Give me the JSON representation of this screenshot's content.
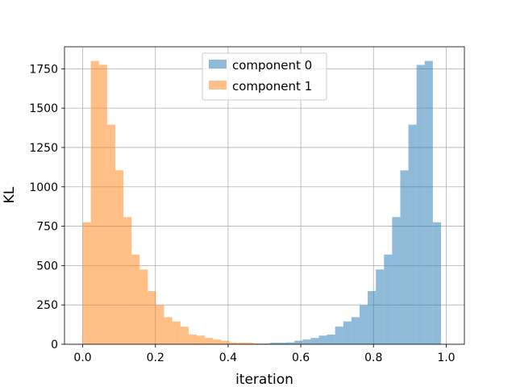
{
  "chart_data": {
    "type": "bar",
    "title": "",
    "xlabel": "iteration",
    "ylabel": "KL",
    "xlim": [
      -0.05,
      1.05
    ],
    "ylim": [
      0,
      1890
    ],
    "xticks": [
      0.0,
      0.2,
      0.4,
      0.6,
      0.8,
      1.0
    ],
    "xtick_labels": [
      "0.0",
      "0.2",
      "0.4",
      "0.6",
      "0.8",
      "1.0"
    ],
    "yticks": [
      0,
      250,
      500,
      750,
      1000,
      1250,
      1500,
      1750
    ],
    "ytick_labels": [
      "0",
      "250",
      "500",
      "750",
      "1000",
      "1250",
      "1500",
      "1750"
    ],
    "grid": true,
    "legend_position": "top-center",
    "bin_edges": [
      0.0,
      0.0224,
      0.0448,
      0.0672,
      0.0896,
      0.112,
      0.1344,
      0.1568,
      0.1792,
      0.2016,
      0.224,
      0.2464,
      0.2688,
      0.2912,
      0.3136,
      0.336,
      0.3584,
      0.3808,
      0.4032,
      0.4256,
      0.448,
      0.4704,
      0.4928,
      0.5152,
      0.5376,
      0.56,
      0.5824,
      0.6048,
      0.6272,
      0.6496,
      0.672,
      0.6944,
      0.7168,
      0.7392,
      0.7616,
      0.784,
      0.8064,
      0.8288,
      0.8512,
      0.8736,
      0.896,
      0.9184,
      0.9408,
      0.9632,
      0.9856
    ],
    "series": [
      {
        "name": "component 0",
        "color": "#1f77b4",
        "alpha": 0.5,
        "values": [
          0,
          0,
          0,
          0,
          0,
          0,
          0,
          0,
          0,
          0,
          0,
          0,
          0,
          0,
          0,
          0,
          0,
          0,
          0,
          0,
          0,
          3,
          5,
          10,
          10,
          12,
          22,
          30,
          40,
          55,
          62,
          112,
          145,
          172,
          248,
          338,
          475,
          570,
          808,
          1105,
          1395,
          1775,
          1800,
          775
        ]
      },
      {
        "name": "component 1",
        "color": "#ff7f0e",
        "alpha": 0.5,
        "values": [
          775,
          1800,
          1775,
          1395,
          1105,
          808,
          570,
          475,
          338,
          248,
          172,
          145,
          112,
          62,
          55,
          40,
          30,
          22,
          12,
          10,
          10,
          5,
          3,
          0,
          0,
          0,
          0,
          0,
          0,
          0,
          0,
          0,
          0,
          0,
          0,
          0,
          0,
          0,
          0,
          0,
          0,
          0,
          0,
          0
        ]
      }
    ]
  }
}
